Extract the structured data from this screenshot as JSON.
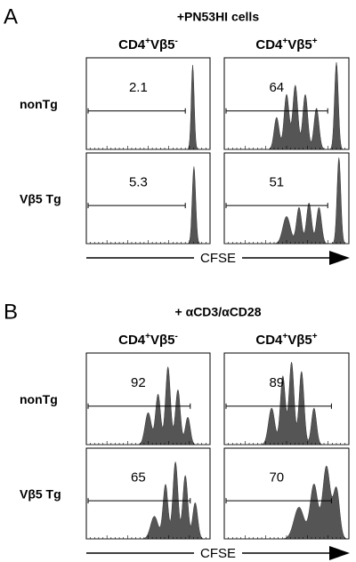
{
  "panels": [
    {
      "letter": "A",
      "title": "+PN53HI cells",
      "columns": [
        [
          "CD4",
          "+",
          "Vβ5",
          "-"
        ],
        [
          "CD4",
          "+",
          "Vβ5",
          "+"
        ]
      ],
      "rows": [
        {
          "label": "nonTg",
          "gates": [
            "2.1",
            "64"
          ]
        },
        {
          "label": "Vβ5 Tg",
          "gates": [
            "5.3",
            "51"
          ]
        }
      ],
      "x_label": "CFSE"
    },
    {
      "letter": "B",
      "title": "+ αCD3/αCD28",
      "columns": [
        [
          "CD4",
          "+",
          "Vβ5",
          "-"
        ],
        [
          "CD4",
          "+",
          "Vβ5",
          "+"
        ]
      ],
      "rows": [
        {
          "label": "nonTg",
          "gates": [
            "92",
            "89"
          ]
        },
        {
          "label": "Vβ5 Tg",
          "gates": [
            "65",
            "70"
          ]
        }
      ],
      "x_label": "CFSE"
    }
  ]
}
